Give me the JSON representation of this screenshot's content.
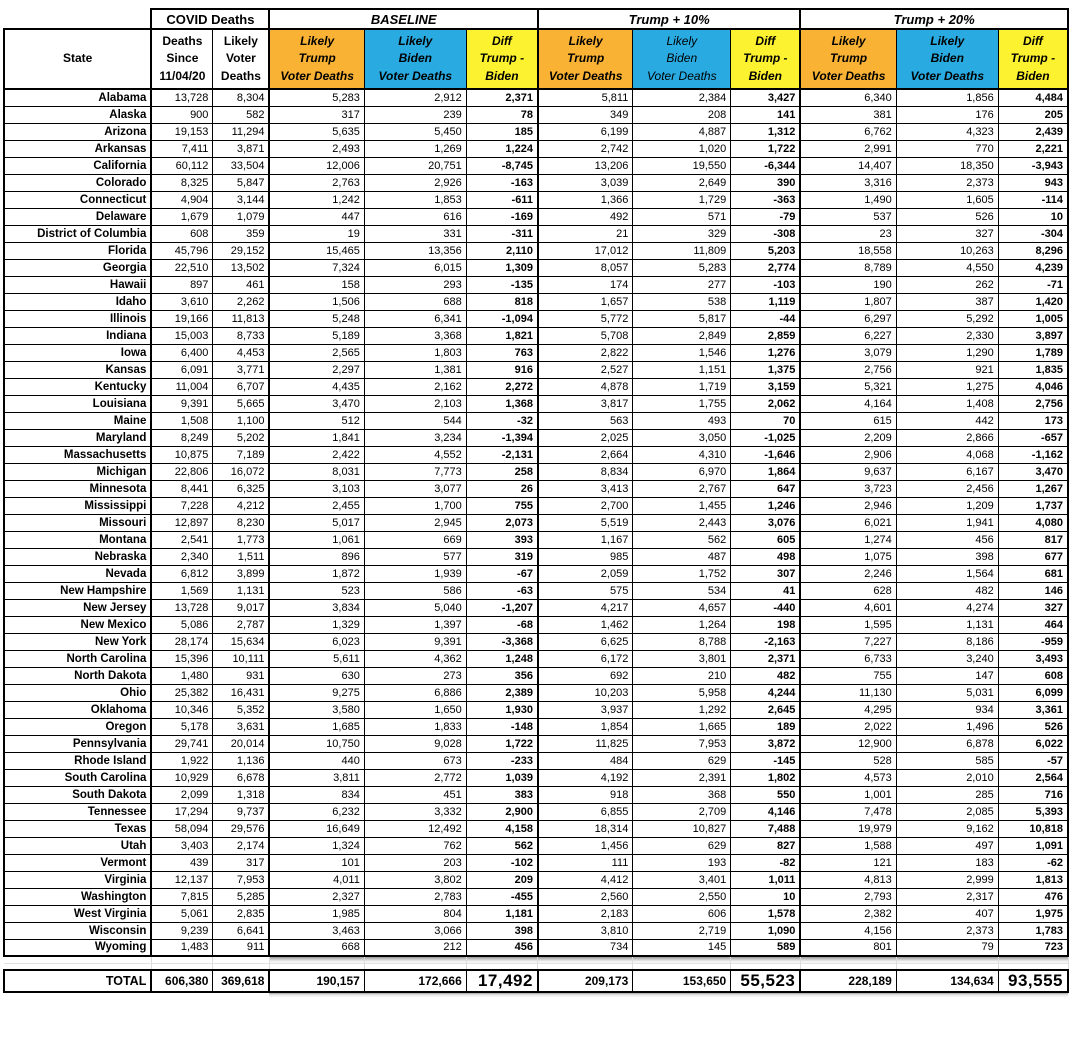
{
  "colors": {
    "trump_orange": "#F9B234",
    "biden_blue": "#29ABE2",
    "diff_yellow": "#FDF22F",
    "grid_black": "#000000"
  },
  "chart_data": {
    "type": "table",
    "group_headers": [
      {
        "label": "COVID Deaths",
        "span": 2,
        "italic": false
      },
      {
        "label": "BASELINE",
        "span": 3,
        "italic": true
      },
      {
        "label": "Trump + 10%",
        "span": 3,
        "italic": true
      },
      {
        "label": "Trump + 20%",
        "span": 3,
        "italic": true
      }
    ],
    "columns": [
      {
        "label": "State"
      },
      {
        "label": "Deaths\nSince\n11/04/20"
      },
      {
        "label": "Likely\nVoter\nDeaths"
      },
      {
        "label": "Likely\nTrump\nVoter Deaths"
      },
      {
        "label": "Likely\nBiden\nVoter Deaths"
      },
      {
        "label": "Diff\nTrump -\nBiden"
      },
      {
        "label": "Likely\nTrump\nVoter Deaths"
      },
      {
        "label": "Likely\nBiden\nVoter Deaths"
      },
      {
        "label": "Diff\nTrump -\nBiden"
      },
      {
        "label": "Likely\nTrump\nVoter Deaths"
      },
      {
        "label": "Likely\nBiden\nVoter Deaths"
      },
      {
        "label": "Diff\nTrump -\nBiden"
      }
    ],
    "rows": [
      [
        "Alabama",
        "13,728",
        "8,304",
        "5,283",
        "2,912",
        "2,371",
        "5,811",
        "2,384",
        "3,427",
        "6,340",
        "1,856",
        "4,484"
      ],
      [
        "Alaska",
        "900",
        "582",
        "317",
        "239",
        "78",
        "349",
        "208",
        "141",
        "381",
        "176",
        "205"
      ],
      [
        "Arizona",
        "19,153",
        "11,294",
        "5,635",
        "5,450",
        "185",
        "6,199",
        "4,887",
        "1,312",
        "6,762",
        "4,323",
        "2,439"
      ],
      [
        "Arkansas",
        "7,411",
        "3,871",
        "2,493",
        "1,269",
        "1,224",
        "2,742",
        "1,020",
        "1,722",
        "2,991",
        "770",
        "2,221"
      ],
      [
        "California",
        "60,112",
        "33,504",
        "12,006",
        "20,751",
        "-8,745",
        "13,206",
        "19,550",
        "-6,344",
        "14,407",
        "18,350",
        "-3,943"
      ],
      [
        "Colorado",
        "8,325",
        "5,847",
        "2,763",
        "2,926",
        "-163",
        "3,039",
        "2,649",
        "390",
        "3,316",
        "2,373",
        "943"
      ],
      [
        "Connecticut",
        "4,904",
        "3,144",
        "1,242",
        "1,853",
        "-611",
        "1,366",
        "1,729",
        "-363",
        "1,490",
        "1,605",
        "-114"
      ],
      [
        "Delaware",
        "1,679",
        "1,079",
        "447",
        "616",
        "-169",
        "492",
        "571",
        "-79",
        "537",
        "526",
        "10"
      ],
      [
        "District of Columbia",
        "608",
        "359",
        "19",
        "331",
        "-311",
        "21",
        "329",
        "-308",
        "23",
        "327",
        "-304"
      ],
      [
        "Florida",
        "45,796",
        "29,152",
        "15,465",
        "13,356",
        "2,110",
        "17,012",
        "11,809",
        "5,203",
        "18,558",
        "10,263",
        "8,296"
      ],
      [
        "Georgia",
        "22,510",
        "13,502",
        "7,324",
        "6,015",
        "1,309",
        "8,057",
        "5,283",
        "2,774",
        "8,789",
        "4,550",
        "4,239"
      ],
      [
        "Hawaii",
        "897",
        "461",
        "158",
        "293",
        "-135",
        "174",
        "277",
        "-103",
        "190",
        "262",
        "-71"
      ],
      [
        "Idaho",
        "3,610",
        "2,262",
        "1,506",
        "688",
        "818",
        "1,657",
        "538",
        "1,119",
        "1,807",
        "387",
        "1,420"
      ],
      [
        "Illinois",
        "19,166",
        "11,813",
        "5,248",
        "6,341",
        "-1,094",
        "5,772",
        "5,817",
        "-44",
        "6,297",
        "5,292",
        "1,005"
      ],
      [
        "Indiana",
        "15,003",
        "8,733",
        "5,189",
        "3,368",
        "1,821",
        "5,708",
        "2,849",
        "2,859",
        "6,227",
        "2,330",
        "3,897"
      ],
      [
        "Iowa",
        "6,400",
        "4,453",
        "2,565",
        "1,803",
        "763",
        "2,822",
        "1,546",
        "1,276",
        "3,079",
        "1,290",
        "1,789"
      ],
      [
        "Kansas",
        "6,091",
        "3,771",
        "2,297",
        "1,381",
        "916",
        "2,527",
        "1,151",
        "1,375",
        "2,756",
        "921",
        "1,835"
      ],
      [
        "Kentucky",
        "11,004",
        "6,707",
        "4,435",
        "2,162",
        "2,272",
        "4,878",
        "1,719",
        "3,159",
        "5,321",
        "1,275",
        "4,046"
      ],
      [
        "Louisiana",
        "9,391",
        "5,665",
        "3,470",
        "2,103",
        "1,368",
        "3,817",
        "1,755",
        "2,062",
        "4,164",
        "1,408",
        "2,756"
      ],
      [
        "Maine",
        "1,508",
        "1,100",
        "512",
        "544",
        "-32",
        "563",
        "493",
        "70",
        "615",
        "442",
        "173"
      ],
      [
        "Maryland",
        "8,249",
        "5,202",
        "1,841",
        "3,234",
        "-1,394",
        "2,025",
        "3,050",
        "-1,025",
        "2,209",
        "2,866",
        "-657"
      ],
      [
        "Massachusetts",
        "10,875",
        "7,189",
        "2,422",
        "4,552",
        "-2,131",
        "2,664",
        "4,310",
        "-1,646",
        "2,906",
        "4,068",
        "-1,162"
      ],
      [
        "Michigan",
        "22,806",
        "16,072",
        "8,031",
        "7,773",
        "258",
        "8,834",
        "6,970",
        "1,864",
        "9,637",
        "6,167",
        "3,470"
      ],
      [
        "Minnesota",
        "8,441",
        "6,325",
        "3,103",
        "3,077",
        "26",
        "3,413",
        "2,767",
        "647",
        "3,723",
        "2,456",
        "1,267"
      ],
      [
        "Mississippi",
        "7,228",
        "4,212",
        "2,455",
        "1,700",
        "755",
        "2,700",
        "1,455",
        "1,246",
        "2,946",
        "1,209",
        "1,737"
      ],
      [
        "Missouri",
        "12,897",
        "8,230",
        "5,017",
        "2,945",
        "2,073",
        "5,519",
        "2,443",
        "3,076",
        "6,021",
        "1,941",
        "4,080"
      ],
      [
        "Montana",
        "2,541",
        "1,773",
        "1,061",
        "669",
        "393",
        "1,167",
        "562",
        "605",
        "1,274",
        "456",
        "817"
      ],
      [
        "Nebraska",
        "2,340",
        "1,511",
        "896",
        "577",
        "319",
        "985",
        "487",
        "498",
        "1,075",
        "398",
        "677"
      ],
      [
        "Nevada",
        "6,812",
        "3,899",
        "1,872",
        "1,939",
        "-67",
        "2,059",
        "1,752",
        "307",
        "2,246",
        "1,564",
        "681"
      ],
      [
        "New Hampshire",
        "1,569",
        "1,131",
        "523",
        "586",
        "-63",
        "575",
        "534",
        "41",
        "628",
        "482",
        "146"
      ],
      [
        "New Jersey",
        "13,728",
        "9,017",
        "3,834",
        "5,040",
        "-1,207",
        "4,217",
        "4,657",
        "-440",
        "4,601",
        "4,274",
        "327"
      ],
      [
        "New Mexico",
        "5,086",
        "2,787",
        "1,329",
        "1,397",
        "-68",
        "1,462",
        "1,264",
        "198",
        "1,595",
        "1,131",
        "464"
      ],
      [
        "New York",
        "28,174",
        "15,634",
        "6,023",
        "9,391",
        "-3,368",
        "6,625",
        "8,788",
        "-2,163",
        "7,227",
        "8,186",
        "-959"
      ],
      [
        "North Carolina",
        "15,396",
        "10,111",
        "5,611",
        "4,362",
        "1,248",
        "6,172",
        "3,801",
        "2,371",
        "6,733",
        "3,240",
        "3,493"
      ],
      [
        "North Dakota",
        "1,480",
        "931",
        "630",
        "273",
        "356",
        "692",
        "210",
        "482",
        "755",
        "147",
        "608"
      ],
      [
        "Ohio",
        "25,382",
        "16,431",
        "9,275",
        "6,886",
        "2,389",
        "10,203",
        "5,958",
        "4,244",
        "11,130",
        "5,031",
        "6,099"
      ],
      [
        "Oklahoma",
        "10,346",
        "5,352",
        "3,580",
        "1,650",
        "1,930",
        "3,937",
        "1,292",
        "2,645",
        "4,295",
        "934",
        "3,361"
      ],
      [
        "Oregon",
        "5,178",
        "3,631",
        "1,685",
        "1,833",
        "-148",
        "1,854",
        "1,665",
        "189",
        "2,022",
        "1,496",
        "526"
      ],
      [
        "Pennsylvania",
        "29,741",
        "20,014",
        "10,750",
        "9,028",
        "1,722",
        "11,825",
        "7,953",
        "3,872",
        "12,900",
        "6,878",
        "6,022"
      ],
      [
        "Rhode Island",
        "1,922",
        "1,136",
        "440",
        "673",
        "-233",
        "484",
        "629",
        "-145",
        "528",
        "585",
        "-57"
      ],
      [
        "South Carolina",
        "10,929",
        "6,678",
        "3,811",
        "2,772",
        "1,039",
        "4,192",
        "2,391",
        "1,802",
        "4,573",
        "2,010",
        "2,564"
      ],
      [
        "South Dakota",
        "2,099",
        "1,318",
        "834",
        "451",
        "383",
        "918",
        "368",
        "550",
        "1,001",
        "285",
        "716"
      ],
      [
        "Tennessee",
        "17,294",
        "9,737",
        "6,232",
        "3,332",
        "2,900",
        "6,855",
        "2,709",
        "4,146",
        "7,478",
        "2,085",
        "5,393"
      ],
      [
        "Texas",
        "58,094",
        "29,576",
        "16,649",
        "12,492",
        "4,158",
        "18,314",
        "10,827",
        "7,488",
        "19,979",
        "9,162",
        "10,818"
      ],
      [
        "Utah",
        "3,403",
        "2,174",
        "1,324",
        "762",
        "562",
        "1,456",
        "629",
        "827",
        "1,588",
        "497",
        "1,091"
      ],
      [
        "Vermont",
        "439",
        "317",
        "101",
        "203",
        "-102",
        "111",
        "193",
        "-82",
        "121",
        "183",
        "-62"
      ],
      [
        "Virginia",
        "12,137",
        "7,953",
        "4,011",
        "3,802",
        "209",
        "4,412",
        "3,401",
        "1,011",
        "4,813",
        "2,999",
        "1,813"
      ],
      [
        "Washington",
        "7,815",
        "5,285",
        "2,327",
        "2,783",
        "-455",
        "2,560",
        "2,550",
        "10",
        "2,793",
        "2,317",
        "476"
      ],
      [
        "West Virginia",
        "5,061",
        "2,835",
        "1,985",
        "804",
        "1,181",
        "2,183",
        "606",
        "1,578",
        "2,382",
        "407",
        "1,975"
      ],
      [
        "Wisconsin",
        "9,239",
        "6,641",
        "3,463",
        "3,066",
        "398",
        "3,810",
        "2,719",
        "1,090",
        "4,156",
        "2,373",
        "1,783"
      ],
      [
        "Wyoming",
        "1,483",
        "911",
        "668",
        "212",
        "456",
        "734",
        "145",
        "589",
        "801",
        "79",
        "723"
      ]
    ],
    "total_row": [
      "TOTAL",
      "606,380",
      "369,618",
      "190,157",
      "172,666",
      "17,492",
      "209,173",
      "153,650",
      "55,523",
      "228,189",
      "134,634",
      "93,555"
    ]
  }
}
